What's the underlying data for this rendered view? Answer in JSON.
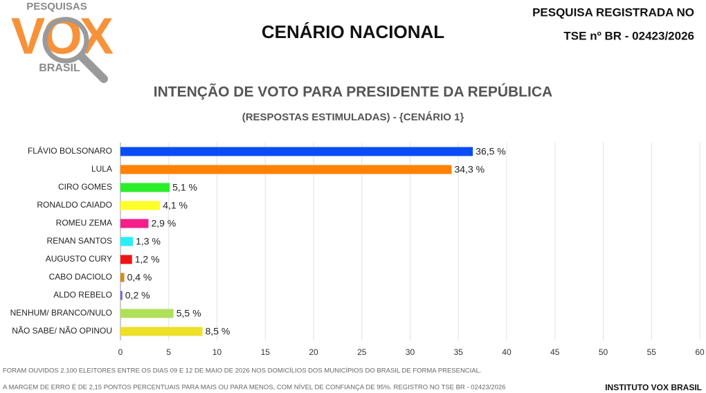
{
  "header": {
    "logo_top": "PESQUISAS",
    "logo_main": "VOX",
    "logo_bottom": "BRASIL",
    "title": "CENÁRIO NACIONAL",
    "registry_line1": "PESQUISA REGISTRADA NO",
    "registry_line2": "TSE nº BR - 02423/2026"
  },
  "chart_data": {
    "type": "hbar",
    "title": "INTENÇÃO DE VOTO PARA PRESIDENTE DA REPÚBLICA",
    "subtitle": "(RESPOSTAS ESTIMULADAS) - {CENÁRIO 1}",
    "categories": [
      "FLÁVIO BOLSONARO",
      "LULA",
      "CIRO GOMES",
      "RONALDO CAIADO",
      "ROMEU ZEMA",
      "RENAN SANTOS",
      "AUGUSTO CURY",
      "CABO DACIOLO",
      "ALDO REBELO",
      "NENHUM/ BRANCO/NULO",
      "NÃO SABE/ NÃO OPINOU"
    ],
    "values": [
      36.5,
      34.3,
      5.1,
      4.1,
      2.9,
      1.3,
      1.2,
      0.4,
      0.2,
      5.5,
      8.5
    ],
    "value_labels": [
      "36,5 %",
      "34,3 %",
      "5,1 %",
      "4,1 %",
      "2,9 %",
      "1,3 %",
      "1,2 %",
      "0,4 %",
      "0,2 %",
      "5,5 %",
      "8,5 %"
    ],
    "colors": [
      "#0a4cf5",
      "#ff8205",
      "#2bee2b",
      "#ffff2a",
      "#f51e8a",
      "#28eef5",
      "#ee1414",
      "#d08c1e",
      "#6a66d8",
      "#aee05a",
      "#eee028"
    ],
    "xlim": [
      0,
      60
    ],
    "xticks": [
      0,
      5,
      10,
      15,
      20,
      25,
      30,
      35,
      40,
      45,
      50,
      55,
      60
    ],
    "grid": true
  },
  "footer": {
    "note1": "FORAM OUVIDOS 2.100 ELEITORES ENTRE OS DIAS 09 E 12 DE MAIO DE 2026 NOS DOMICÍLIOS DOS MUNICÍPIOS DO BRASIL DE FORMA PRESENCIAL.",
    "note2": "A MARGEM DE ERRO É DE 2,15 PONTOS PERCENTUAIS PARA MAIS OU PARA MENOS, COM NÍVEL DE CONFIANÇA DE 95%. REGISTRO NO TSE BR - 02423/2026",
    "source": "INSTITUTO VOX BRASIL"
  }
}
